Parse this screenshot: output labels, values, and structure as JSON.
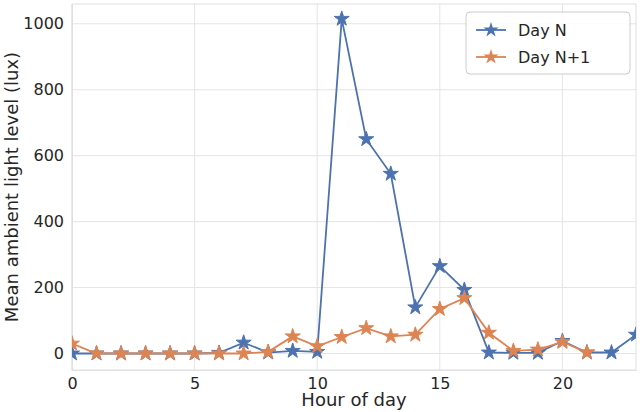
{
  "chart_data": {
    "type": "line",
    "x_label": "Hour of day",
    "y_label": "Mean ambient light level (lux)",
    "x": [
      0,
      1,
      2,
      3,
      4,
      5,
      6,
      7,
      8,
      9,
      10,
      11,
      12,
      13,
      14,
      15,
      16,
      17,
      18,
      19,
      20,
      21,
      22,
      23
    ],
    "series": [
      {
        "name": "Day N",
        "color": "#4c72b0",
        "marker": "star",
        "values": [
          0,
          0,
          0,
          0,
          0,
          0,
          2,
          33,
          3,
          8,
          5,
          1015,
          650,
          545,
          140,
          265,
          193,
          3,
          2,
          2,
          38,
          3,
          3,
          57
        ]
      },
      {
        "name": "Day N+1",
        "color": "#dd8452",
        "marker": "star",
        "values": [
          30,
          0,
          0,
          0,
          0,
          0,
          0,
          0,
          5,
          52,
          22,
          50,
          77,
          52,
          57,
          135,
          168,
          63,
          8,
          12,
          35,
          3,
          null,
          null
        ]
      }
    ],
    "xlim": [
      0,
      23
    ],
    "xticks": [
      0,
      5,
      10,
      15,
      20
    ],
    "ylim": [
      -50,
      1060
    ],
    "yticks": [
      0,
      200,
      400,
      600,
      800,
      1000
    ],
    "grid": true,
    "legend": "upper right"
  }
}
